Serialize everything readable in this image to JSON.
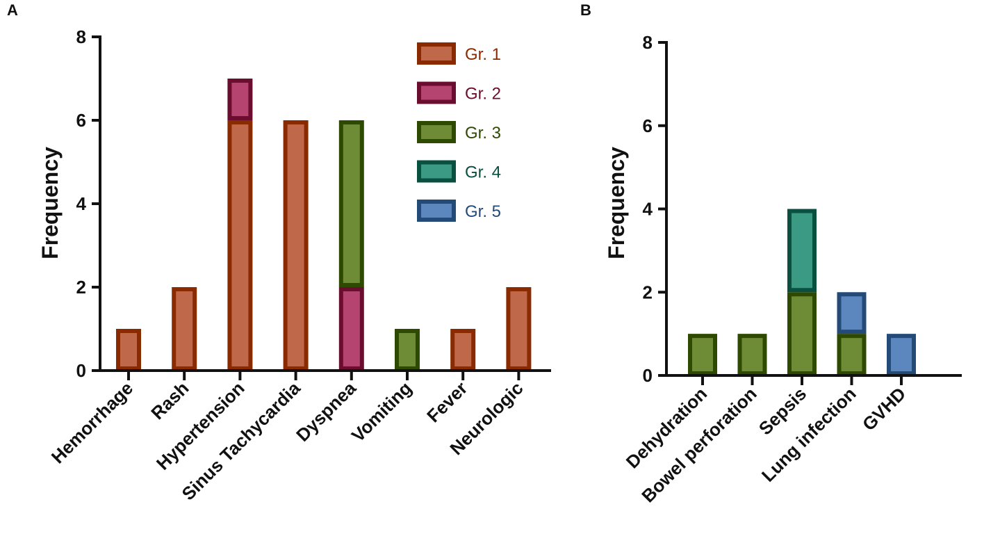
{
  "grades": [
    {
      "key": "g1",
      "name": "Gr. 1",
      "fill": "#C0684A",
      "stroke": "#8A2A00",
      "text": "#8A2A00"
    },
    {
      "key": "g2",
      "name": "Gr. 2",
      "fill": "#B54570",
      "stroke": "#6A0D2E",
      "text": "#6A0D2E"
    },
    {
      "key": "g3",
      "name": "Gr. 3",
      "fill": "#6E8B35",
      "stroke": "#2E4A00",
      "text": "#2E4A00"
    },
    {
      "key": "g4",
      "name": "Gr. 4",
      "fill": "#3A9A84",
      "stroke": "#0A5040",
      "text": "#0A5040"
    },
    {
      "key": "g5",
      "name": "Gr. 5",
      "fill": "#5B86BE",
      "stroke": "#244A78",
      "text": "#244A78"
    }
  ],
  "chart_data": [
    {
      "panel": "A",
      "type": "bar",
      "stacked": true,
      "ylabel": "Frequency",
      "xlabel": "",
      "ylim": [
        0,
        8
      ],
      "yticks": [
        "0",
        "2",
        "4",
        "6",
        "8"
      ],
      "legend": {
        "placement": "top-right",
        "entries": [
          "Gr. 1",
          "Gr. 2",
          "Gr. 3",
          "Gr. 4",
          "Gr. 5"
        ]
      },
      "categories": [
        "Hemorrhage",
        "Rash",
        "Hypertension",
        "Sinus Tachycardia",
        "Dyspnea",
        "Vomiting",
        "Fever",
        "Neurologic"
      ],
      "series": [
        {
          "name": "Gr. 1",
          "key": "g1",
          "values": [
            1,
            2,
            6,
            6,
            0,
            0,
            1,
            2
          ]
        },
        {
          "name": "Gr. 2",
          "key": "g2",
          "values": [
            0,
            0,
            1,
            0,
            2,
            0,
            0,
            0
          ]
        },
        {
          "name": "Gr. 3",
          "key": "g3",
          "values": [
            0,
            0,
            0,
            0,
            4,
            1,
            0,
            0
          ]
        },
        {
          "name": "Gr. 4",
          "key": "g4",
          "values": [
            0,
            0,
            0,
            0,
            0,
            0,
            0,
            0
          ]
        },
        {
          "name": "Gr. 5",
          "key": "g5",
          "values": [
            0,
            0,
            0,
            0,
            0,
            0,
            0,
            0
          ]
        }
      ]
    },
    {
      "panel": "B",
      "type": "bar",
      "stacked": true,
      "ylabel": "Frequency",
      "xlabel": "",
      "ylim": [
        0,
        8
      ],
      "yticks": [
        "0",
        "2",
        "4",
        "6",
        "8"
      ],
      "categories": [
        "Dehydration",
        "Bowel perforation",
        "Sepsis",
        "Lung infection",
        "GVHD"
      ],
      "series": [
        {
          "name": "Gr. 1",
          "key": "g1",
          "values": [
            0,
            0,
            0,
            0,
            0
          ]
        },
        {
          "name": "Gr. 2",
          "key": "g2",
          "values": [
            0,
            0,
            0,
            0,
            0
          ]
        },
        {
          "name": "Gr. 3",
          "key": "g3",
          "values": [
            1,
            1,
            2,
            1,
            0
          ]
        },
        {
          "name": "Gr. 4",
          "key": "g4",
          "values": [
            0,
            0,
            2,
            0,
            0
          ]
        },
        {
          "name": "Gr. 5",
          "key": "g5",
          "values": [
            0,
            0,
            0,
            1,
            1
          ]
        }
      ]
    }
  ]
}
